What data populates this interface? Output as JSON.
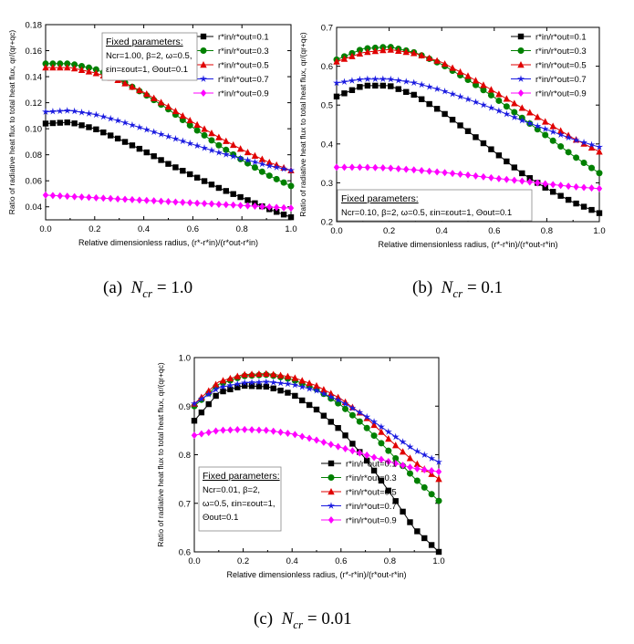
{
  "figure": {
    "captions": [
      {
        "label": "(a)",
        "symbol": "N",
        "sub": "cr",
        "value": "= 1.0"
      },
      {
        "label": "(b)",
        "symbol": "N",
        "sub": "cr",
        "value": "= 0.1"
      },
      {
        "label": "(c)",
        "symbol": "N",
        "sub": "cr",
        "value": "= 0.01"
      }
    ]
  },
  "chart_data": [
    {
      "type": "line",
      "id": "a",
      "title": "",
      "xlabel": "Relative dimensionless radius, (r*-r*in)/(r*out-r*in)",
      "ylabel": "Ratio of radiative heat flux to total heat flux, qr/(qr+qc)",
      "xlim": [
        0,
        1
      ],
      "ylim": [
        0.03,
        0.18
      ],
      "xticks": [
        "0.0",
        "0.2",
        "0.4",
        "0.6",
        "0.8",
        "1.0"
      ],
      "yticks": [
        "0.04",
        "0.06",
        "0.08",
        "0.10",
        "0.12",
        "0.14",
        "0.16",
        "0.18"
      ],
      "annotation": [
        "Fixed parameters:",
        "Ncr=1.00, β=2, ω=0.5,",
        "εin=εout=1, Θout=0.1"
      ],
      "legend_position": "top-right",
      "series": [
        {
          "name": "r*in/r*out=0.1",
          "color": "#000000",
          "marker": "square",
          "x": [
            0.0,
            0.1,
            0.2,
            0.3,
            0.4,
            0.5,
            0.6,
            0.7,
            0.8,
            0.9,
            1.0
          ],
          "values": [
            0.104,
            0.105,
            0.1,
            0.092,
            0.083,
            0.073,
            0.064,
            0.055,
            0.047,
            0.039,
            0.032
          ]
        },
        {
          "name": "r*in/r*out=0.3",
          "color": "#008000",
          "marker": "circle",
          "x": [
            0.0,
            0.1,
            0.2,
            0.3,
            0.4,
            0.5,
            0.6,
            0.7,
            0.8,
            0.9,
            1.0
          ],
          "values": [
            0.15,
            0.15,
            0.146,
            0.138,
            0.127,
            0.115,
            0.101,
            0.088,
            0.076,
            0.065,
            0.056
          ]
        },
        {
          "name": "r*in/r*out=0.5",
          "color": "#e00000",
          "marker": "triangle",
          "x": [
            0.0,
            0.1,
            0.2,
            0.3,
            0.4,
            0.5,
            0.6,
            0.7,
            0.8,
            0.9,
            1.0
          ],
          "values": [
            0.147,
            0.147,
            0.143,
            0.137,
            0.128,
            0.117,
            0.105,
            0.094,
            0.084,
            0.075,
            0.068
          ]
        },
        {
          "name": "r*in/r*out=0.7",
          "color": "#1a1ae0",
          "marker": "star",
          "x": [
            0.0,
            0.1,
            0.2,
            0.3,
            0.4,
            0.5,
            0.6,
            0.7,
            0.8,
            0.9,
            1.0
          ],
          "values": [
            0.113,
            0.114,
            0.111,
            0.106,
            0.1,
            0.094,
            0.088,
            0.082,
            0.077,
            0.072,
            0.068
          ]
        },
        {
          "name": "r*in/r*out=0.9",
          "color": "#ff00ff",
          "marker": "diamond",
          "x": [
            0.0,
            0.1,
            0.2,
            0.3,
            0.4,
            0.5,
            0.6,
            0.7,
            0.8,
            0.9,
            1.0
          ],
          "values": [
            0.049,
            0.048,
            0.047,
            0.046,
            0.045,
            0.044,
            0.043,
            0.042,
            0.041,
            0.04,
            0.039
          ]
        }
      ]
    },
    {
      "type": "line",
      "id": "b",
      "title": "",
      "xlabel": "Relative dimensionless radius, (r*-r*in)/(r*out-r*in)",
      "ylabel": "Ratio of radiative heat flux to total heat flux, qr/(qr+qc)",
      "xlim": [
        0,
        1
      ],
      "ylim": [
        0.2,
        0.7
      ],
      "xticks": [
        "0.0",
        "0.2",
        "0.4",
        "0.6",
        "0.8",
        "1.0"
      ],
      "yticks": [
        "0.2",
        "0.3",
        "0.4",
        "0.5",
        "0.6",
        "0.7"
      ],
      "annotation": [
        "Fixed parameters:",
        "Ncr=0.10, β=2, ω=0.5, εin=εout=1, Θout=0.1"
      ],
      "legend_position": "top-right",
      "series": [
        {
          "name": "r*in/r*out=0.1",
          "color": "#000000",
          "marker": "square",
          "x": [
            0.0,
            0.1,
            0.2,
            0.3,
            0.4,
            0.5,
            0.6,
            0.7,
            0.8,
            0.9,
            1.0
          ],
          "values": [
            0.522,
            0.55,
            0.55,
            0.525,
            0.483,
            0.433,
            0.38,
            0.327,
            0.285,
            0.25,
            0.222
          ]
        },
        {
          "name": "r*in/r*out=0.3",
          "color": "#008000",
          "marker": "circle",
          "x": [
            0.0,
            0.1,
            0.2,
            0.3,
            0.4,
            0.5,
            0.6,
            0.7,
            0.8,
            0.9,
            1.0
          ],
          "values": [
            0.617,
            0.645,
            0.65,
            0.635,
            0.605,
            0.565,
            0.52,
            0.47,
            0.42,
            0.37,
            0.325
          ]
        },
        {
          "name": "r*in/r*out=0.5",
          "color": "#e00000",
          "marker": "triangle",
          "x": [
            0.0,
            0.1,
            0.2,
            0.3,
            0.4,
            0.5,
            0.6,
            0.7,
            0.8,
            0.9,
            1.0
          ],
          "values": [
            0.612,
            0.635,
            0.643,
            0.633,
            0.61,
            0.575,
            0.535,
            0.495,
            0.455,
            0.415,
            0.38
          ]
        },
        {
          "name": "r*in/r*out=0.7",
          "color": "#1a1ae0",
          "marker": "star",
          "x": [
            0.0,
            0.1,
            0.2,
            0.3,
            0.4,
            0.5,
            0.6,
            0.7,
            0.8,
            0.9,
            1.0
          ],
          "values": [
            0.557,
            0.567,
            0.567,
            0.557,
            0.538,
            0.515,
            0.49,
            0.462,
            0.437,
            0.412,
            0.392
          ]
        },
        {
          "name": "r*in/r*out=0.9",
          "color": "#ff00ff",
          "marker": "diamond",
          "x": [
            0.0,
            0.1,
            0.2,
            0.3,
            0.4,
            0.5,
            0.6,
            0.7,
            0.8,
            0.9,
            1.0
          ],
          "values": [
            0.34,
            0.34,
            0.338,
            0.333,
            0.327,
            0.32,
            0.312,
            0.305,
            0.297,
            0.29,
            0.285
          ]
        }
      ]
    },
    {
      "type": "line",
      "id": "c",
      "title": "",
      "xlabel": "Relative dimensionless radius, (r*-r*in)/(r*out-r*in)",
      "ylabel": "Ratio of radiative heat flux to total heat flux, qr/(qr+qc)",
      "xlim": [
        0,
        1
      ],
      "ylim": [
        0.6,
        1.0
      ],
      "xticks": [
        "0.0",
        "0.2",
        "0.4",
        "0.6",
        "0.8",
        "1.0"
      ],
      "yticks": [
        "0.6",
        "0.7",
        "0.8",
        "0.9",
        "1.0"
      ],
      "annotation": [
        "Fixed parameters:",
        "Ncr=0.01, β=2,",
        "ω=0.5, εin=εout=1,",
        "Θout=0.1"
      ],
      "legend_position": "lower-center",
      "series": [
        {
          "name": "r*in/r*out=0.1",
          "color": "#000000",
          "marker": "square",
          "x": [
            0.0,
            0.1,
            0.2,
            0.3,
            0.4,
            0.5,
            0.6,
            0.7,
            0.8,
            0.9,
            1.0
          ],
          "values": [
            0.87,
            0.928,
            0.942,
            0.94,
            0.925,
            0.893,
            0.85,
            0.792,
            0.722,
            0.648,
            0.6
          ]
        },
        {
          "name": "r*in/r*out=0.3",
          "color": "#008000",
          "marker": "circle",
          "x": [
            0.0,
            0.1,
            0.2,
            0.3,
            0.4,
            0.5,
            0.6,
            0.7,
            0.8,
            0.9,
            1.0
          ],
          "values": [
            0.9,
            0.945,
            0.962,
            0.965,
            0.955,
            0.935,
            0.902,
            0.858,
            0.805,
            0.752,
            0.705
          ]
        },
        {
          "name": "r*in/r*out=0.5",
          "color": "#e00000",
          "marker": "triangle",
          "x": [
            0.0,
            0.1,
            0.2,
            0.3,
            0.4,
            0.5,
            0.6,
            0.7,
            0.8,
            0.9,
            1.0
          ],
          "values": [
            0.905,
            0.95,
            0.965,
            0.967,
            0.96,
            0.942,
            0.915,
            0.878,
            0.83,
            0.785,
            0.75
          ]
        },
        {
          "name": "r*in/r*out=0.7",
          "color": "#1a1ae0",
          "marker": "star",
          "x": [
            0.0,
            0.1,
            0.2,
            0.3,
            0.4,
            0.5,
            0.6,
            0.7,
            0.8,
            0.9,
            1.0
          ],
          "values": [
            0.905,
            0.938,
            0.948,
            0.95,
            0.945,
            0.932,
            0.91,
            0.88,
            0.845,
            0.81,
            0.785
          ]
        },
        {
          "name": "r*in/r*out=0.9",
          "color": "#ff00ff",
          "marker": "diamond",
          "x": [
            0.0,
            0.1,
            0.2,
            0.3,
            0.4,
            0.5,
            0.6,
            0.7,
            0.8,
            0.9,
            1.0
          ],
          "values": [
            0.84,
            0.85,
            0.852,
            0.85,
            0.843,
            0.83,
            0.815,
            0.8,
            0.785,
            0.772,
            0.765
          ]
        }
      ]
    }
  ]
}
